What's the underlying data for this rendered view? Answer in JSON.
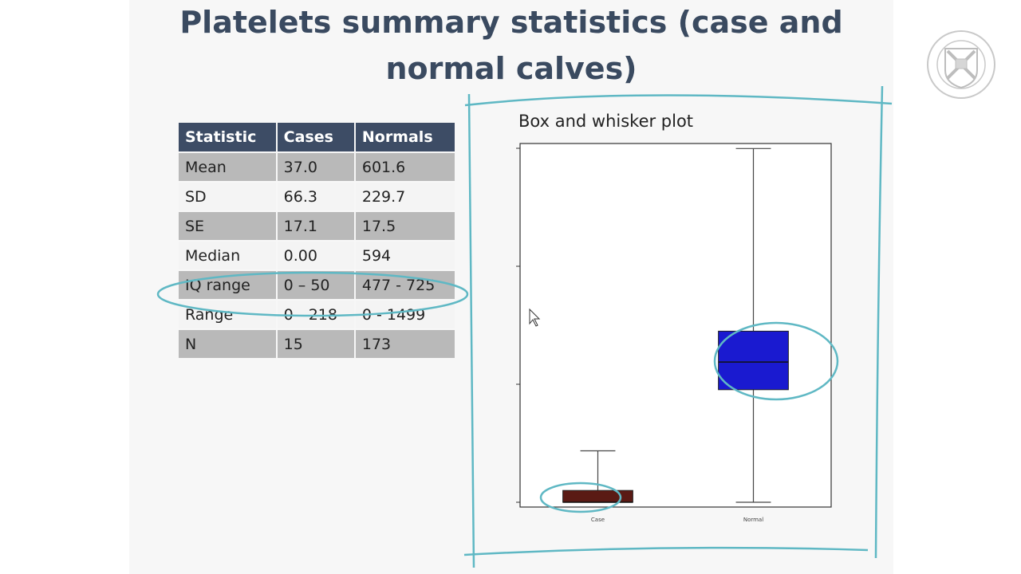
{
  "title": {
    "line1": "Platelets summary statistics (case and",
    "line2": "normal calves)"
  },
  "table": {
    "headers": [
      "Statistic",
      "Cases",
      "Normals"
    ],
    "rows": [
      [
        "Mean",
        "37.0",
        "601.6"
      ],
      [
        "SD",
        "66.3",
        "229.7"
      ],
      [
        "SE",
        "17.1",
        "17.5"
      ],
      [
        "Median",
        "0.00",
        "594"
      ],
      [
        "IQ range",
        "0 – 50",
        "477 - 725"
      ],
      [
        "Range",
        "0 -  218",
        "0 - 1499"
      ],
      [
        "N",
        "15",
        "173"
      ]
    ]
  },
  "colors": {
    "header": "#3d4c65",
    "title": "#3a4a60",
    "case_box": "#5a1a14",
    "normal_box": "#1a1ad0",
    "annotation": "#5fb8c4"
  },
  "chart_data": {
    "type": "box",
    "title": "Box and whisker plot",
    "categories": [
      "Case",
      "Normal"
    ],
    "ylim": [
      0,
      1500
    ],
    "series": [
      {
        "name": "Case",
        "whisker_low": 0,
        "q1": 0,
        "median": 0,
        "q3": 50,
        "whisker_high": 218
      },
      {
        "name": "Normal",
        "whisker_low": 0,
        "q1": 477,
        "median": 594,
        "q3": 725,
        "whisker_high": 1499
      }
    ],
    "xlabel": "",
    "ylabel": ""
  }
}
